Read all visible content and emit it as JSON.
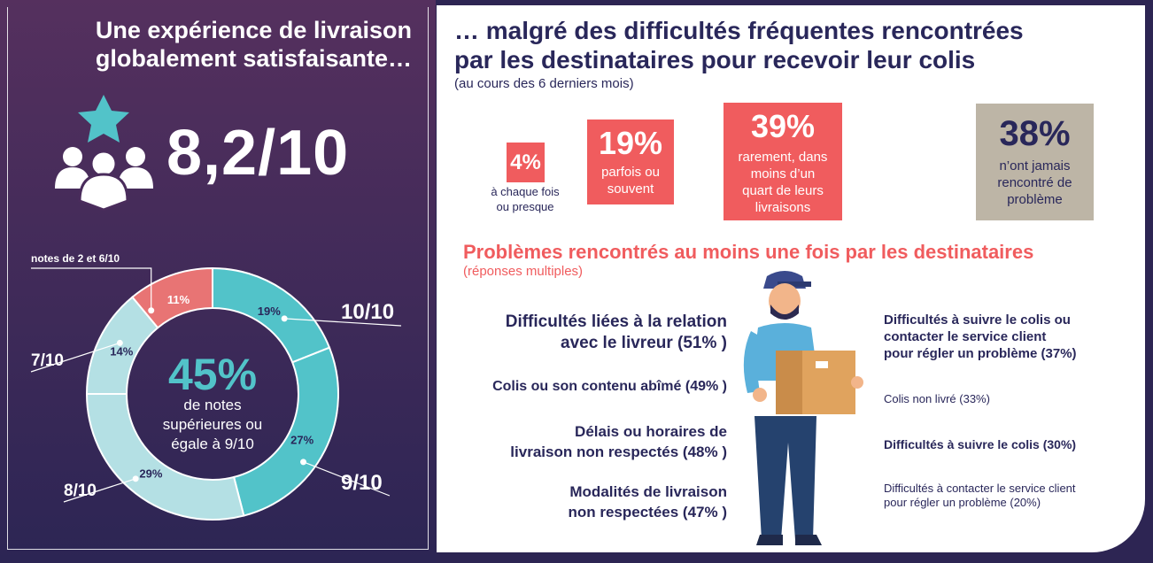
{
  "left": {
    "title": "Une expérience de livraison globalement satisfaisante…",
    "score": "8,2/10"
  },
  "chart_data": {
    "type": "pie",
    "categories": [
      "10/10",
      "9/10",
      "8/10",
      "7/10",
      "notes de 2 et 6/10"
    ],
    "values": [
      19,
      27,
      29,
      14,
      11
    ],
    "labels": [
      "19%",
      "27%",
      "29%",
      "14%",
      "11%"
    ],
    "colors": [
      "#52c3c9",
      "#52c3c9",
      "#b4e0e4",
      "#b4e0e4",
      "#e87474"
    ],
    "center": {
      "value": "45%",
      "line1": "de notes",
      "line2": "supérieures ou",
      "line3": "égale à 9/10"
    }
  },
  "right": {
    "title1": "… malgré des difficultés fréquentes rencontrées",
    "title2": "par les destinataires pour recevoir leur colis",
    "subtitle": "(au cours des 6 derniers mois)",
    "freq": [
      {
        "pct": "4%",
        "label1": "à chaque fois",
        "label2": "ou presque"
      },
      {
        "pct": "19%",
        "label1": "parfois ou",
        "label2": "souvent"
      },
      {
        "pct": "39%",
        "label1": "rarement, dans",
        "label2": "moins d’un",
        "label3": "quart de leurs",
        "label4": "livraisons"
      },
      {
        "pct": "38%",
        "label1": "n’ont jamais",
        "label2": "rencontré de",
        "label3": "problème"
      }
    ],
    "colors": {
      "red": "#f05c5e",
      "grey": "#bdb5a6",
      "navy": "#29275a"
    },
    "section_title": "Problèmes rencontrés au moins une fois par les destinataires",
    "section_sub": "(réponses multiples)",
    "problems_left": [
      {
        "l1": "Difficultés liées à la relation",
        "l2": "avec le livreur (51% )"
      },
      {
        "l1": "Colis ou son contenu abîmé (49% )"
      },
      {
        "l1": "Délais ou horaires de",
        "l2": "livraison non respectés (48% )"
      },
      {
        "l1": "Modalités de livraison",
        "l2": "non respectées (47% )"
      }
    ],
    "problems_right": [
      {
        "l1": "Difficultés à suivre le colis ou",
        "l2": "contacter le service client",
        "l3": "pour régler un problème (37%)"
      },
      {
        "l1": "Colis non livré (33%)"
      },
      {
        "l1": "Difficultés à suivre le colis (30%)"
      },
      {
        "l1": "Difficultés à contacter le service client",
        "l2": "pour régler un problème (20%)"
      }
    ]
  }
}
